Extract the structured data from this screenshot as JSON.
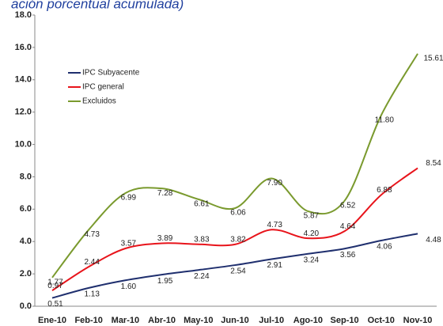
{
  "chart_data": {
    "type": "line",
    "title": "ación porcentual acumulada)",
    "categories": [
      "Ene-10",
      "Feb-10",
      "Mar-10",
      "Abr-10",
      "May-10",
      "Jun-10",
      "Jul-10",
      "Ago-10",
      "Sep-10",
      "Oct-10",
      "Nov-10"
    ],
    "series": [
      {
        "name": "IPC Subyacente",
        "color": "#1f2f6e",
        "values": [
          0.51,
          1.13,
          1.6,
          1.95,
          2.24,
          2.54,
          2.91,
          3.24,
          3.56,
          4.06,
          4.48
        ],
        "value_labels": [
          "0.51",
          "1.13",
          "1.60",
          "1.95",
          "2.24",
          "2.54",
          "2.91",
          "3.24",
          "3.56",
          "4.06",
          "4.48"
        ]
      },
      {
        "name": "IPC general",
        "color": "#e8141b",
        "values": [
          0.97,
          2.44,
          3.57,
          3.89,
          3.83,
          3.82,
          4.73,
          4.2,
          4.64,
          6.88,
          8.54
        ],
        "value_labels": [
          "0.97",
          "2.44",
          "3.57",
          "3.89",
          "3.83",
          "3.82",
          "4.73",
          "4.20",
          "4.64",
          "6.88",
          "8.54"
        ]
      },
      {
        "name": "Excluidos",
        "color": "#7a9a2e",
        "values": [
          1.77,
          4.73,
          6.99,
          7.28,
          6.61,
          6.06,
          7.9,
          5.87,
          6.52,
          11.8,
          15.61
        ],
        "value_labels": [
          "1.77",
          "4.73",
          "6.99",
          "7.28",
          "6.61",
          "6.06",
          "7.90",
          "5.87",
          "6.52",
          "11.80",
          "15.61"
        ]
      }
    ],
    "ylim": [
      0,
      18
    ],
    "yticks": [
      {
        "value": 0,
        "label": "0.0"
      },
      {
        "value": 2,
        "label": "2.0"
      },
      {
        "value": 4,
        "label": "4.0"
      },
      {
        "value": 6,
        "label": "6.0"
      },
      {
        "value": 8,
        "label": "8.0"
      },
      {
        "value": 10,
        "label": "10.0"
      },
      {
        "value": 12,
        "label": "12.0"
      },
      {
        "value": 14,
        "label": "14.0"
      },
      {
        "value": 16,
        "label": "16.0"
      },
      {
        "value": 18,
        "label": "18.0"
      }
    ],
    "legend": "upper left"
  }
}
